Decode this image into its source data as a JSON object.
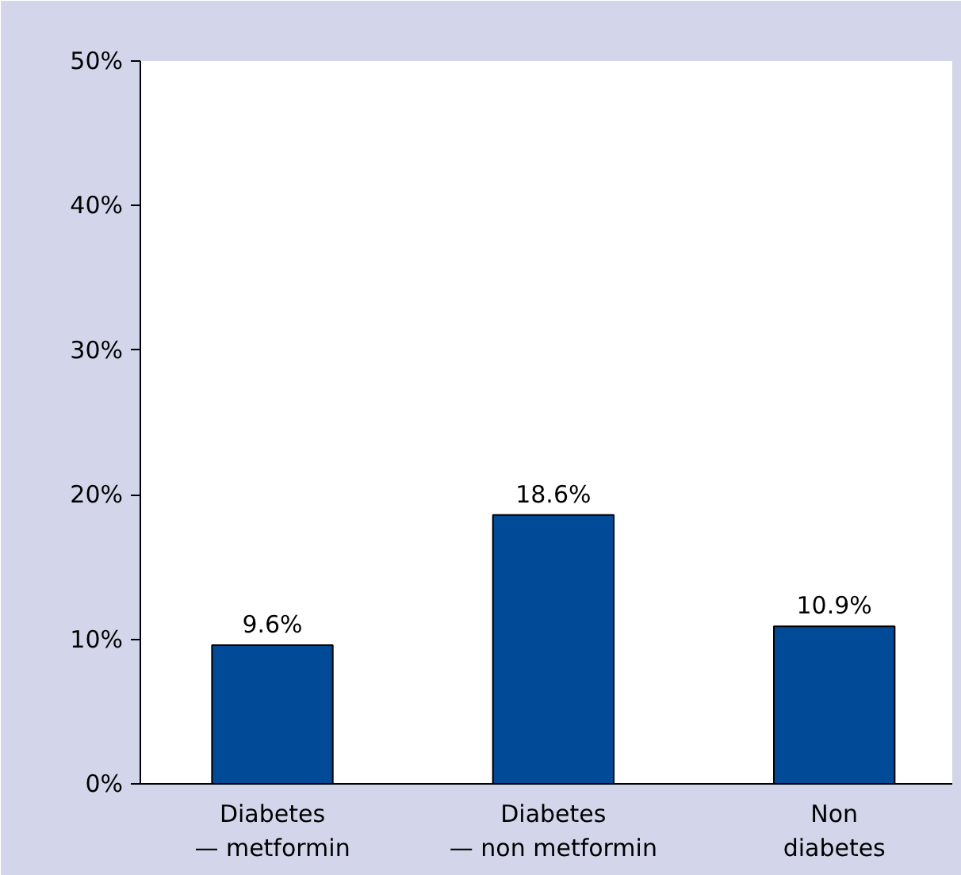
{
  "chart_data": {
    "type": "bar",
    "categories": [
      "Diabetes\n— metformin",
      "Diabetes\n— non metformin",
      "Non\ndiabetes"
    ],
    "values": [
      9.6,
      18.6,
      10.9
    ],
    "value_labels": [
      "9.6%",
      "18.6%",
      "10.9%"
    ],
    "color": "#004a97",
    "ylim": [
      0,
      50
    ],
    "yticks": [
      {
        "value": 0,
        "label": "0%"
      },
      {
        "value": 10,
        "label": "10%"
      },
      {
        "value": 20,
        "label": "20%"
      },
      {
        "value": 30,
        "label": "30%"
      },
      {
        "value": 40,
        "label": "40%"
      },
      {
        "value": 50,
        "label": "50%"
      }
    ],
    "grid": false
  }
}
